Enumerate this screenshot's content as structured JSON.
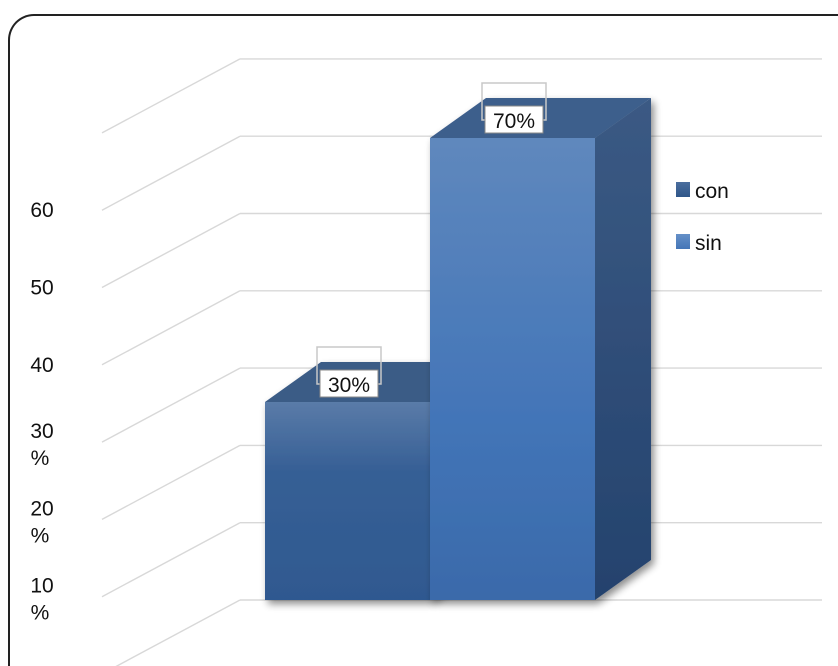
{
  "chart_data": {
    "type": "bar",
    "categories": [
      ""
    ],
    "y_tick_labels": [
      "10\n%",
      "20\n%",
      "30\n%",
      "40",
      "50",
      "60"
    ],
    "series": [
      {
        "name": "con",
        "values": [
          30
        ],
        "data_label": "30%",
        "color": "#3A5F91"
      },
      {
        "name": "sin",
        "values": [
          70
        ],
        "data_label": "70%",
        "color": "#4A78B5"
      }
    ],
    "ylim": [
      0,
      80
    ],
    "grid": true,
    "legend_position": "right",
    "three_d": true
  }
}
